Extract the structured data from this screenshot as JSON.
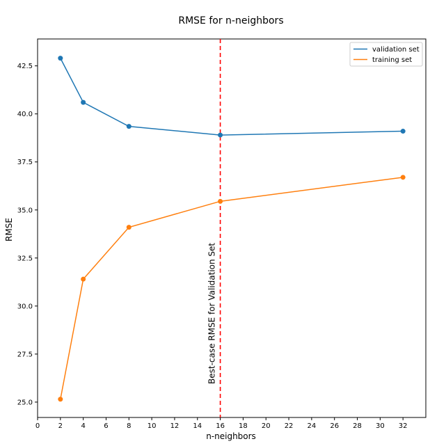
{
  "chart_data": {
    "type": "line",
    "title": "RMSE for n-neighbors",
    "xlabel": "n-neighbors",
    "ylabel": "RMSE",
    "xlim": [
      0,
      34
    ],
    "ylim": [
      24.2,
      43.9
    ],
    "xticks": [
      0,
      2,
      4,
      6,
      8,
      10,
      12,
      14,
      16,
      18,
      20,
      22,
      24,
      26,
      28,
      30,
      32
    ],
    "yticks": [
      25.0,
      27.5,
      30.0,
      32.5,
      35.0,
      37.5,
      40.0,
      42.5
    ],
    "ytick_labels": [
      "25.0",
      "27.5",
      "30.0",
      "32.5",
      "35.0",
      "37.5",
      "40.0",
      "42.5"
    ],
    "x": [
      2,
      4,
      8,
      16,
      32
    ],
    "series": [
      {
        "name": "validation set",
        "color": "#1f77b4",
        "values": [
          42.9,
          40.6,
          39.35,
          38.9,
          39.1
        ]
      },
      {
        "name": "training set",
        "color": "#ff7f0e",
        "values": [
          25.15,
          31.4,
          34.1,
          35.45,
          36.7
        ]
      }
    ],
    "vline": {
      "x": 16,
      "color": "#ff0000",
      "style": "dashed",
      "label": "Best-case RMSE for Validation Set"
    },
    "grid": false,
    "legend_position": "top-right",
    "markers": "circle"
  }
}
